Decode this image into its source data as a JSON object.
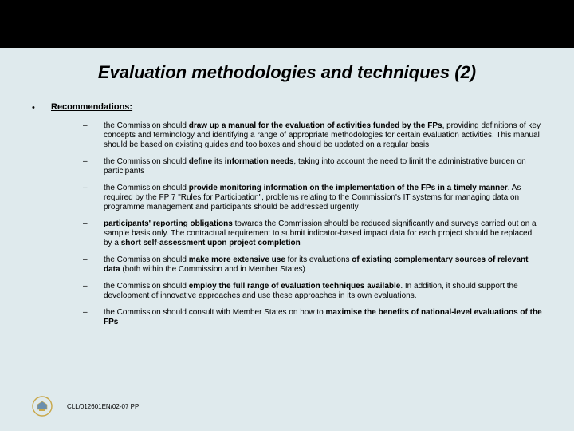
{
  "colors": {
    "background": "#dfeaed",
    "top_band": "#000000",
    "text": "#000000",
    "emblem_gold": "#c9a84a",
    "emblem_blue": "#6b8fae"
  },
  "title": "Evaluation methodologies and techniques (2)",
  "recommendations_heading": "Recommendations:",
  "items": [
    "the Commission should <b>draw up a manual for the evaluation of activities funded by the FPs</b>, providing definitions of key concepts and terminology and identifying a range of appropriate methodologies for certain evaluation activities. This manual should be based on existing guides and toolboxes and should be updated on a regular basis",
    "the Commission should <b>define</b> its <b>information needs</b>, taking into account the need to limit the administrative burden on participants",
    "the Commission should <b>provide monitoring information on the implementation of the FPs in a timely manner</b>. As required by the FP 7 \"Rules for Participation\", problems relating to the Commission's IT systems for managing data on programme management and participants should be addressed urgently",
    "<b>participants' reporting obligations</b> towards the Commission should be reduced significantly and surveys carried out on a sample basis only. The contractual requirement to submit indicator-based impact data for each project should be replaced by a <b>short self-assessment upon project completion</b>",
    "the Commission should <b>make more extensive use</b> for its evaluations <b>of existing complementary sources of relevant data</b> (both within the Commission and in Member States)",
    "the Commission should <b>employ the full range of evaluation techniques available</b>. In addition, it should support the development of innovative approaches and use these approaches in its own evaluations.",
    "the Commission should consult with Member States on how to <b>maximise the benefits of national-level evaluations of the FPs</b>"
  ],
  "footer_code": "CLL/012601EN/02-07 PP"
}
